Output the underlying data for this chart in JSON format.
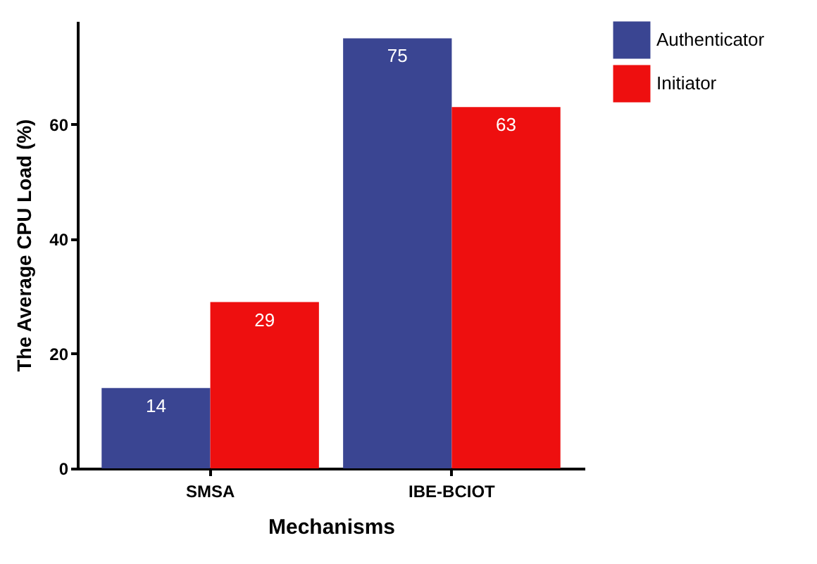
{
  "chart_data": {
    "type": "bar",
    "xlabel": "Mechanisms",
    "ylabel": "The Average CPU Load (%)",
    "categories": [
      "SMSA",
      "IBE-BCIOT"
    ],
    "series": [
      {
        "name": "Authenticator",
        "color": "#3a4592",
        "values": [
          14,
          75
        ]
      },
      {
        "name": "Initiator",
        "color": "#ee0f0f",
        "values": [
          29,
          63
        ]
      }
    ],
    "ylim": [
      0,
      78
    ],
    "yticks": [
      0,
      20,
      40,
      60
    ],
    "data_labels": true,
    "legend": "right"
  }
}
